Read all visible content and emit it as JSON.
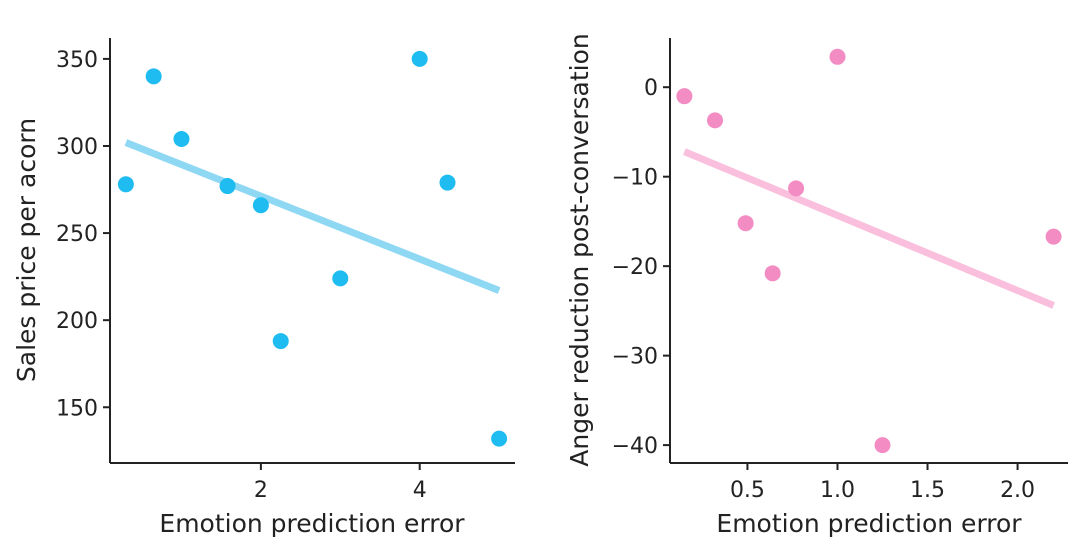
{
  "chart_data": [
    {
      "type": "scatter",
      "title": "",
      "xlabel": "Emotion prediction error",
      "ylabel": "Sales price per acorn",
      "xlim": [
        0.1,
        5.2
      ],
      "ylim": [
        118,
        362
      ],
      "xticks": [
        2,
        4
      ],
      "yticks": [
        150,
        200,
        250,
        300,
        350
      ],
      "points": [
        {
          "x": 0.3,
          "y": 278
        },
        {
          "x": 0.65,
          "y": 340
        },
        {
          "x": 1.0,
          "y": 304
        },
        {
          "x": 1.58,
          "y": 277
        },
        {
          "x": 2.0,
          "y": 266
        },
        {
          "x": 2.25,
          "y": 188
        },
        {
          "x": 3.0,
          "y": 224
        },
        {
          "x": 4.0,
          "y": 350
        },
        {
          "x": 4.35,
          "y": 279
        },
        {
          "x": 5.0,
          "y": 132
        }
      ],
      "trend": {
        "x": [
          0.3,
          5.0
        ],
        "y": [
          302,
          217
        ]
      },
      "point_color": "#1ebcf0",
      "line_color": "#8fd8f4",
      "grid": false
    },
    {
      "type": "scatter",
      "title": "",
      "xlabel": "Emotion prediction error",
      "ylabel": "Anger reduction post-conversation",
      "xlim": [
        0.07,
        2.28
      ],
      "ylim": [
        -42,
        5.5
      ],
      "xticks": [
        0.5,
        1.0,
        1.5,
        2.0
      ],
      "xtick_labels": [
        "0.5",
        "1.0",
        "1.5",
        "2.0"
      ],
      "yticks": [
        -40,
        -30,
        -20,
        -10,
        0
      ],
      "ytick_labels": [
        "−40",
        "−30",
        "−20",
        "−10",
        "0"
      ],
      "points": [
        {
          "x": 0.15,
          "y": -1
        },
        {
          "x": 0.32,
          "y": -3.7
        },
        {
          "x": 0.49,
          "y": -15.2
        },
        {
          "x": 0.64,
          "y": -20.8
        },
        {
          "x": 0.77,
          "y": -11.3
        },
        {
          "x": 1.0,
          "y": 3.4
        },
        {
          "x": 1.25,
          "y": -40
        },
        {
          "x": 2.2,
          "y": -16.7
        }
      ],
      "trend": {
        "x": [
          0.15,
          2.2
        ],
        "y": [
          -7.2,
          -24.4
        ]
      },
      "point_color": "#f28cc3",
      "line_color": "#f9bfdc",
      "grid": false
    }
  ]
}
